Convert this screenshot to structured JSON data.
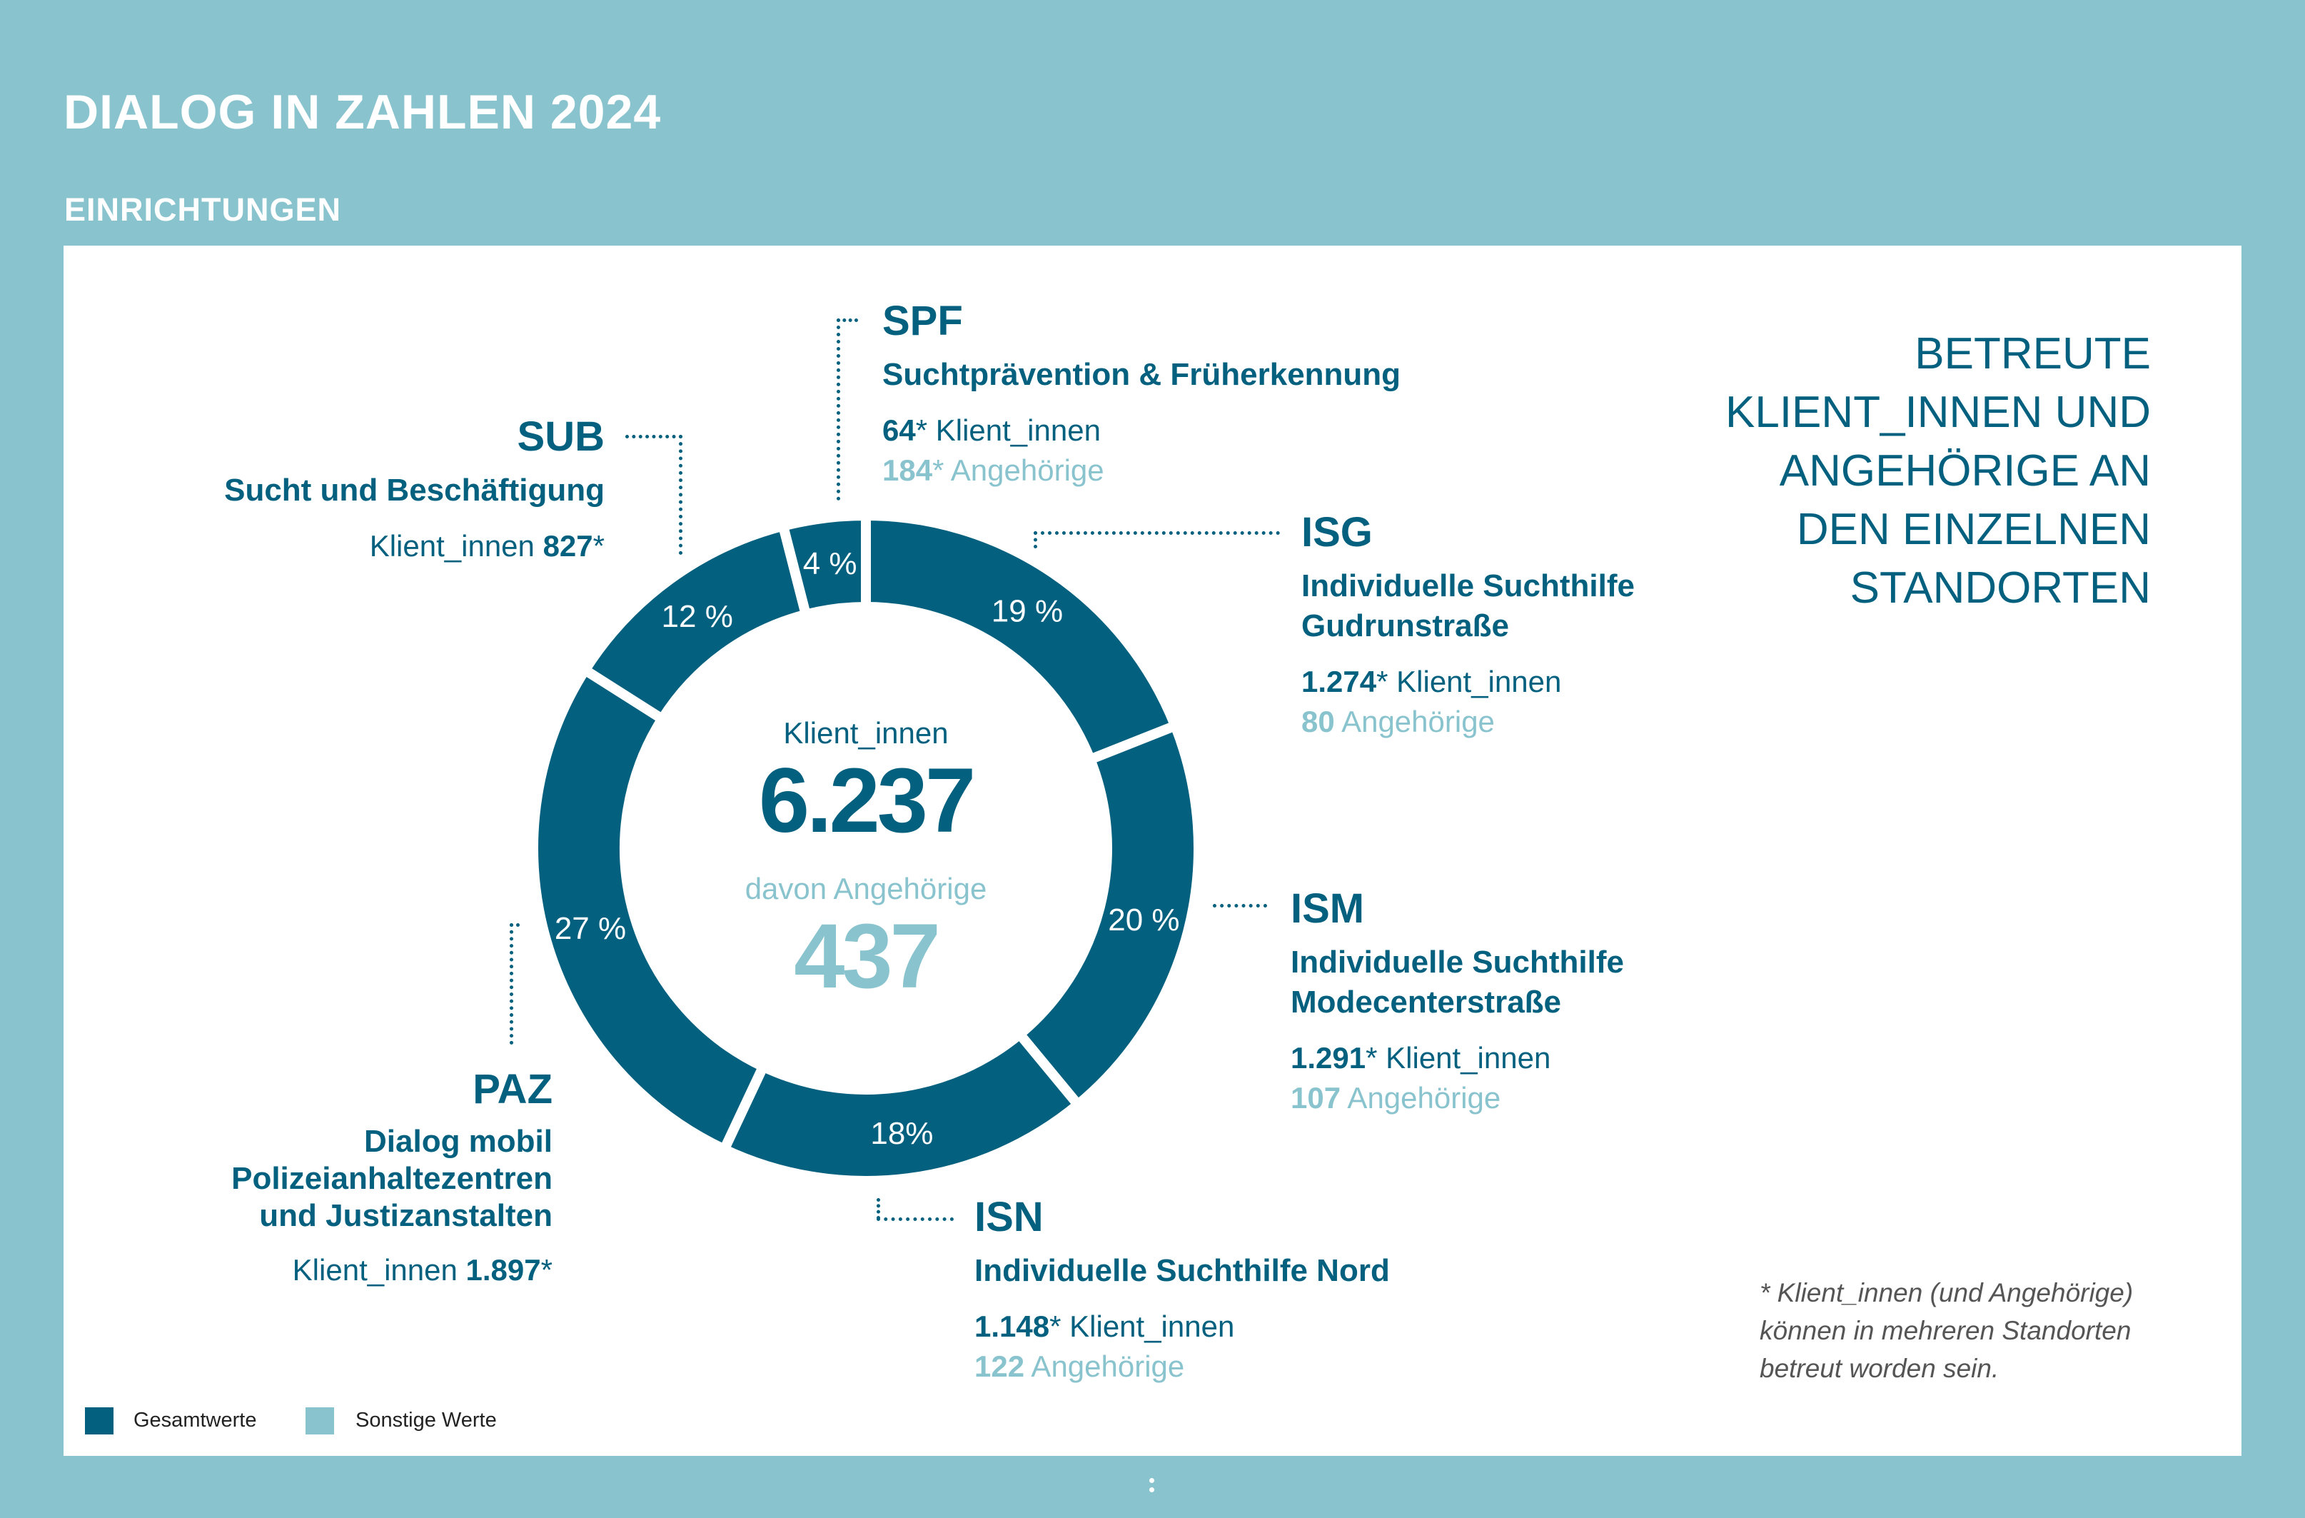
{
  "header": {
    "title": "DIALOG IN ZAHLEN 2024",
    "subtitle": "EINRICHTUNGEN"
  },
  "colors": {
    "background": "#89c4ce",
    "gesamt": "#03607e",
    "sonstige": "#89c4ce"
  },
  "chart_data": {
    "type": "pie",
    "center": {
      "label1": "Klient_innen",
      "value1": "6.237",
      "label2": "davon Angehörige",
      "value2": "437"
    },
    "segments": [
      {
        "code": "ISG",
        "percent": 19,
        "percent_label": "19 %"
      },
      {
        "code": "ISM",
        "percent": 20,
        "percent_label": "20 %"
      },
      {
        "code": "ISN",
        "percent": 18,
        "percent_label": "18%"
      },
      {
        "code": "PAZ",
        "percent": 27,
        "percent_label": "27 %"
      },
      {
        "code": "SUB",
        "percent": 12,
        "percent_label": "12 %"
      },
      {
        "code": "SPF",
        "percent": 4,
        "percent_label": "4 %"
      }
    ],
    "legend": [
      {
        "label": "Gesamtwerte",
        "color": "#03607e"
      },
      {
        "label": "Sonstige Werte",
        "color": "#89c4ce"
      }
    ],
    "legend_placement": "bottom-left"
  },
  "labels": {
    "spf": {
      "code": "SPF",
      "name": "Suchtprävention & Früherkennung",
      "clients": "64",
      "clients_label": " Klient_innen",
      "relatives": "184",
      "relatives_label": " Angehörige",
      "star": "*"
    },
    "sub": {
      "code": "SUB",
      "name": "Sucht und Beschäftigung",
      "clients_label": "Klient_innen ",
      "clients": "827",
      "star": "*"
    },
    "isg": {
      "code": "ISG",
      "name1": "Individuelle Suchthilfe",
      "name2": "Gudrunstraße",
      "clients": "1.274",
      "clients_label": " Klient_innen",
      "relatives": "80",
      "relatives_label": " Angehörige",
      "star": "*"
    },
    "ism": {
      "code": "ISM",
      "name1": "Individuelle Suchthilfe",
      "name2": "Modecenterstraße",
      "clients": "1.291",
      "clients_label": " Klient_innen",
      "relatives": "107",
      "relatives_label": " Angehörige",
      "star": "*"
    },
    "isn": {
      "code": "ISN",
      "name": "Individuelle Suchthilfe Nord",
      "clients": "1.148",
      "clients_label": " Klient_innen",
      "relatives": "122",
      "relatives_label": " Angehörige",
      "star": "*"
    },
    "paz": {
      "code": "PAZ",
      "name1": "Dialog mobil",
      "name2": "Polizeianhaltezentren",
      "name3": "und Justizanstalten",
      "clients_label": "Klient_innen ",
      "clients": "1.897",
      "star": "*"
    }
  },
  "heading": [
    "BETREUTE",
    "KLIENT_INNEN UND",
    "ANGEHÖRIGE AN",
    "DEN EINZELNEN",
    "STANDORTEN"
  ],
  "footnote": [
    "* Klient_innen (und Angehörige)",
    "können in mehreren Standorten",
    "betreut worden sein."
  ]
}
